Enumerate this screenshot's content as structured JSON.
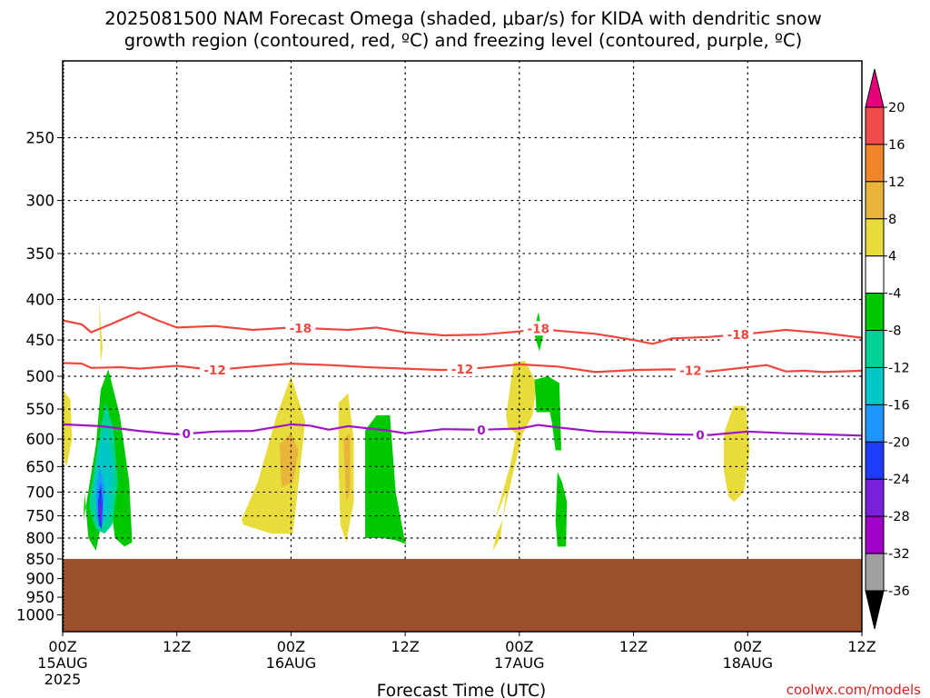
{
  "chart_data": {
    "type": "heatmap",
    "title_line1": "2025081500 NAM Forecast Omega (shaded, μbar/s) for KIDA with dendritic snow",
    "title_line2": "growth region (contoured, red, ºC) and freezing level (contoured, purple, ºC)",
    "xlabel": "Forecast Time (UTC)",
    "ylabel": "",
    "credit": "coolwx.com/models",
    "x_range_hours": [
      0,
      84
    ],
    "y_scale": "log",
    "y_range_hpa": [
      1050,
      200
    ],
    "y_ticks": [
      "250",
      "300",
      "350",
      "400",
      "450",
      "500",
      "550",
      "600",
      "650",
      "700",
      "750",
      "800",
      "850",
      "900",
      "950",
      "1000"
    ],
    "x_ticks": [
      {
        "hour": 0,
        "time": "00Z",
        "date": "15AUG",
        "year": "2025"
      },
      {
        "hour": 12,
        "time": "12Z",
        "date": "",
        "year": ""
      },
      {
        "hour": 24,
        "time": "00Z",
        "date": "16AUG",
        "year": ""
      },
      {
        "hour": 36,
        "time": "12Z",
        "date": "",
        "year": ""
      },
      {
        "hour": 48,
        "time": "00Z",
        "date": "17AUG",
        "year": ""
      },
      {
        "hour": 60,
        "time": "12Z",
        "date": "",
        "year": ""
      },
      {
        "hour": 72,
        "time": "00Z",
        "date": "18AUG",
        "year": ""
      },
      {
        "hour": 84,
        "time": "12Z",
        "date": "",
        "year": ""
      }
    ],
    "grid": true,
    "colorbar": {
      "labels": [
        "20",
        "16",
        "12",
        "8",
        "4",
        "-4",
        "-8",
        "-12",
        "-16",
        "-20",
        "-24",
        "-28",
        "-32",
        "-36"
      ],
      "colors": [
        "#f04a4a",
        "#f08628",
        "#e8b43c",
        "#e8dc3c",
        "#ffffff",
        "#00c800",
        "#00d296",
        "#00c8c8",
        "#1e96ff",
        "#1e3cff",
        "#7820dc",
        "#a000c8",
        "#a0a0a0"
      ],
      "top_arrow_color": "#e6007a",
      "bottom_arrow_color": "#000000"
    },
    "contours": [
      {
        "label": "-18",
        "color": "#f0463c",
        "points": [
          [
            0,
            425
          ],
          [
            2,
            430
          ],
          [
            3,
            440
          ],
          [
            5,
            430
          ],
          [
            8,
            415
          ],
          [
            10,
            425
          ],
          [
            12,
            434
          ],
          [
            16,
            432
          ],
          [
            20,
            437
          ],
          [
            24,
            434
          ],
          [
            28,
            436
          ],
          [
            30,
            437
          ],
          [
            33,
            434
          ],
          [
            36,
            440
          ],
          [
            40,
            444
          ],
          [
            44,
            443
          ],
          [
            48,
            439
          ],
          [
            50,
            435
          ],
          [
            52,
            438
          ],
          [
            56,
            442
          ],
          [
            60,
            450
          ],
          [
            62,
            455
          ],
          [
            64,
            448
          ],
          [
            68,
            446
          ],
          [
            72,
            442
          ],
          [
            76,
            437
          ],
          [
            80,
            441
          ],
          [
            84,
            447
          ]
        ],
        "label_hours": [
          25,
          50,
          71
        ]
      },
      {
        "label": "-12",
        "color": "#f0463c",
        "points": [
          [
            0,
            481
          ],
          [
            2,
            482
          ],
          [
            3,
            488
          ],
          [
            6,
            487
          ],
          [
            8,
            489
          ],
          [
            12,
            485
          ],
          [
            16,
            491
          ],
          [
            20,
            486
          ],
          [
            24,
            482
          ],
          [
            28,
            484
          ],
          [
            32,
            487
          ],
          [
            36,
            489
          ],
          [
            40,
            491
          ],
          [
            44,
            488
          ],
          [
            48,
            483
          ],
          [
            52,
            486
          ],
          [
            56,
            494
          ],
          [
            60,
            491
          ],
          [
            64,
            490
          ],
          [
            68,
            493
          ],
          [
            72,
            487
          ],
          [
            74,
            484
          ],
          [
            76,
            493
          ],
          [
            78,
            492
          ],
          [
            80,
            494
          ],
          [
            84,
            492
          ]
        ],
        "label_hours": [
          16,
          42,
          66
        ]
      },
      {
        "label": "0",
        "color": "#a014c8",
        "points": [
          [
            0,
            575
          ],
          [
            4,
            578
          ],
          [
            8,
            586
          ],
          [
            12,
            592
          ],
          [
            16,
            587
          ],
          [
            20,
            586
          ],
          [
            24,
            575
          ],
          [
            26,
            577
          ],
          [
            28,
            584
          ],
          [
            30,
            578
          ],
          [
            34,
            585
          ],
          [
            36,
            590
          ],
          [
            40,
            583
          ],
          [
            44,
            584
          ],
          [
            48,
            582
          ],
          [
            50,
            576
          ],
          [
            52,
            580
          ],
          [
            56,
            587
          ],
          [
            60,
            589
          ],
          [
            64,
            592
          ],
          [
            68,
            593
          ],
          [
            72,
            587
          ],
          [
            76,
            590
          ],
          [
            80,
            592
          ],
          [
            84,
            594
          ]
        ],
        "label_hours": [
          13,
          44,
          67
        ]
      }
    ],
    "shaded_regions": [
      {
        "value": -6,
        "color": "#00c800",
        "hours": [
          2.2,
          3.5,
          4.0,
          4.8,
          6.0,
          7.0,
          7.3,
          6.5,
          5.5,
          4.8,
          3.5,
          2.7,
          2.3
        ],
        "pressures": [
          760,
          610,
          520,
          490,
          560,
          680,
          810,
          820,
          800,
          690,
          830,
          800,
          700
        ]
      },
      {
        "value": -10,
        "color": "#00d296",
        "hours": [
          2.8,
          3.8,
          4.5,
          5.3,
          5.8,
          5.2,
          4.4,
          3.5,
          2.9
        ],
        "pressures": [
          720,
          600,
          540,
          580,
          680,
          770,
          790,
          780,
          740
        ]
      },
      {
        "value": -14,
        "color": "#00c8c8",
        "hours": [
          3.2,
          3.9,
          4.6,
          5.3,
          5.0,
          4.3,
          3.5
        ],
        "pressures": [
          700,
          610,
          580,
          650,
          740,
          770,
          740
        ]
      },
      {
        "value": -18,
        "color": "#1e96ff",
        "hours": [
          3.5,
          3.9,
          4.4,
          4.2,
          3.6
        ],
        "pressures": [
          700,
          650,
          690,
          770,
          760
        ]
      },
      {
        "value": -22,
        "color": "#1e3cff",
        "hours": [
          3.7,
          4.0,
          4.2,
          4.1,
          3.8
        ],
        "pressures": [
          720,
          680,
          720,
          780,
          770
        ]
      },
      {
        "value": -26,
        "color": "#7820dc",
        "hours": [
          3.85,
          4.0,
          4.1,
          4.0
        ],
        "pressures": [
          730,
          710,
          745,
          775
        ]
      },
      {
        "value": 5,
        "color": "#e8dc3c",
        "hours": [
          0,
          0.8,
          1.0,
          0.4,
          0
        ],
        "pressures": [
          520,
          535,
          600,
          650,
          630
        ]
      },
      {
        "value": 5,
        "color": "#e8dc3c",
        "hours": [
          3.8,
          4.0,
          4.2,
          4.0
        ],
        "pressures": [
          400,
          430,
          460,
          480
        ]
      },
      {
        "value": 5,
        "color": "#e8dc3c",
        "hours": [
          18.8,
          20.5,
          22.5,
          24.0,
          25.5,
          24.8,
          24.2,
          22.0,
          19.0
        ],
        "pressures": [
          758,
          680,
          560,
          500,
          570,
          680,
          790,
          790,
          770
        ]
      },
      {
        "value": 9,
        "color": "#e8b43c",
        "hours": [
          22.8,
          24.0,
          24.8,
          24.2,
          23.0
        ],
        "pressures": [
          610,
          590,
          620,
          680,
          690
        ]
      },
      {
        "value": 5,
        "color": "#e8dc3c",
        "hours": [
          29.0,
          30.0,
          30.6,
          30.6,
          29.8,
          29.2,
          29.0
        ],
        "pressures": [
          540,
          525,
          600,
          720,
          810,
          770,
          660
        ]
      },
      {
        "value": 9,
        "color": "#e8b43c",
        "hours": [
          29.5,
          30.2,
          30.2,
          29.8
        ],
        "pressures": [
          600,
          590,
          700,
          720
        ]
      },
      {
        "value": -6,
        "color": "#00c800",
        "hours": [
          31.8,
          33.0,
          34.4,
          35.0,
          36.0,
          36.2,
          35.0,
          33.6,
          31.8
        ],
        "pressures": [
          585,
          560,
          560,
          700,
          810,
          815,
          805,
          800,
          800
        ]
      },
      {
        "value": 5,
        "color": "#e8dc3c",
        "hours": [
          45.4,
          47.0,
          49.2,
          48.8,
          48.5,
          47.0,
          46.2,
          45.6,
          45.2,
          46.0,
          46.6
        ],
        "pressures": [
          760,
          650,
          480,
          500,
          580,
          690,
          760,
          790,
          830,
          800,
          700
        ]
      },
      {
        "value": 5,
        "color": "#e8dc3c",
        "hours": [
          46.6,
          47.4,
          48.6,
          49.8,
          49.4,
          48.4,
          47.6,
          46.8
        ],
        "pressures": [
          560,
          480,
          478,
          510,
          560,
          590,
          590,
          580
        ]
      },
      {
        "value": -6,
        "color": "#00c800",
        "hours": [
          49.5,
          50.0,
          50.5,
          50.1
        ],
        "pressures": [
          440,
          415,
          445,
          465
        ]
      },
      {
        "value": -6,
        "color": "#00c800",
        "hours": [
          49.6,
          51.0,
          52.2,
          52.4,
          51.8,
          51.4,
          51.2,
          49.8
        ],
        "pressures": [
          505,
          500,
          510,
          620,
          620,
          570,
          555,
          555
        ]
      },
      {
        "value": -6,
        "color": "#00c800",
        "hours": [
          52.0,
          52.5,
          53.0,
          52.9,
          52.0,
          51.8
        ],
        "pressures": [
          660,
          680,
          720,
          820,
          820,
          760
        ]
      },
      {
        "value": 5,
        "color": "#e8dc3c",
        "hours": [
          69.5,
          70.5,
          71.8,
          72.2,
          71.6,
          70.6,
          70.0,
          69.5
        ],
        "pressures": [
          590,
          545,
          545,
          620,
          700,
          720,
          710,
          660
        ]
      }
    ],
    "ground_below_hpa": 850,
    "ground_color": "#9c4f2b"
  }
}
